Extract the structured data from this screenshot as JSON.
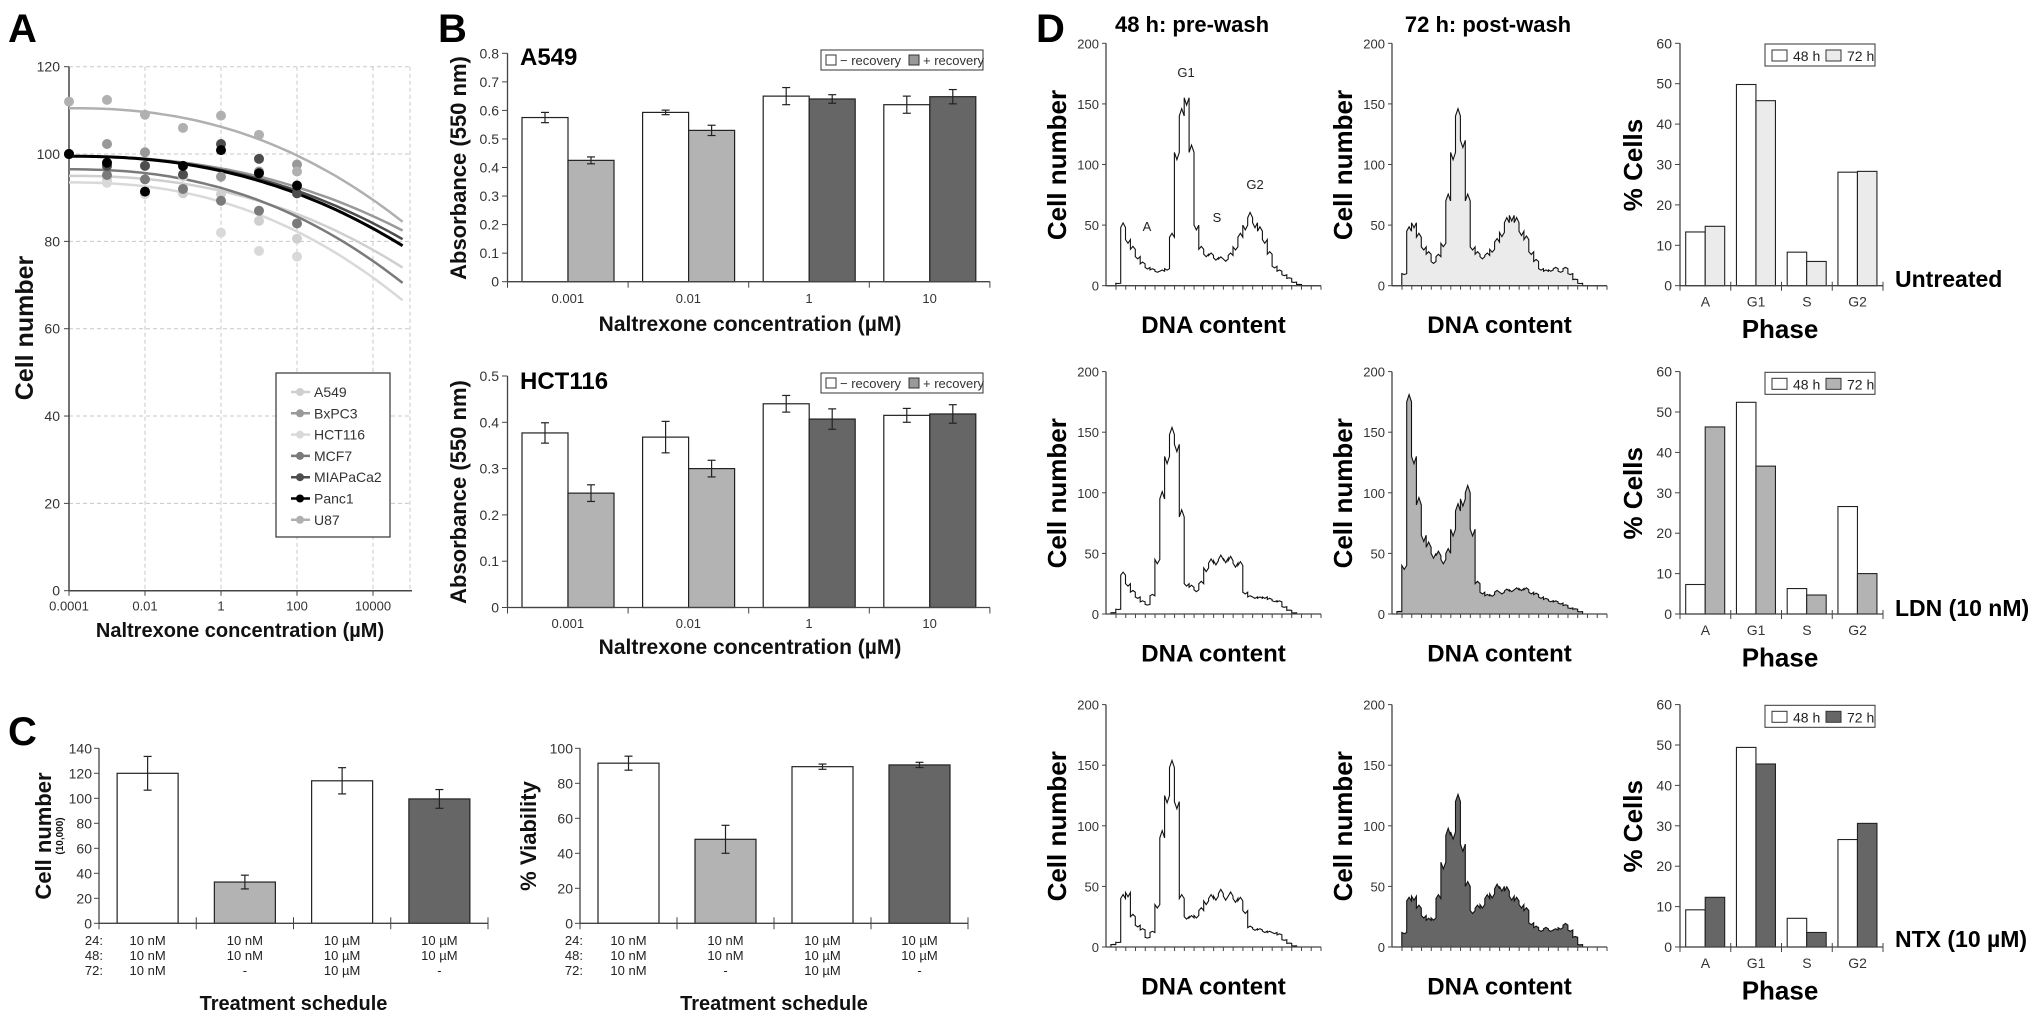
{
  "figure": {
    "panel_labels": [
      "A",
      "B",
      "C",
      "D"
    ],
    "d_column_titles": [
      "48 h: pre-wash",
      "72 h: post-wash"
    ],
    "d_row_labels": [
      "Untreated",
      "LDN (10 nM)",
      "NTX (10 µM)"
    ]
  },
  "chart_data": [
    {
      "panel": "A",
      "type": "scatter",
      "xscale": "log",
      "xlabel": "Naltrexone concentration (µM)",
      "ylabel": "Cell number",
      "ylim": [
        0,
        120
      ],
      "yticks": [
        0,
        20,
        40,
        60,
        80,
        100,
        120
      ],
      "xticks": [
        "0.0001",
        "0.01",
        "1",
        "100",
        "10000"
      ],
      "grid": true,
      "legend": "bottom-right",
      "x": [
        0.0001,
        0.001,
        0.01,
        0.1,
        1,
        10,
        100
      ],
      "fit_x_range": [
        0.0001,
        60000
      ],
      "series": [
        {
          "name": "A549",
          "color": "#cfcfcf",
          "values": [
            100,
            94,
            91,
            91,
            90.8,
            84.7,
            80.6
          ],
          "fit": [
            95,
            74
          ]
        },
        {
          "name": "BxPC3",
          "color": "#999999",
          "values": [
            100,
            102.3,
            100.4,
            95,
            94.8,
            96,
            97.6
          ],
          "fit": [
            99.5,
            82.5
          ]
        },
        {
          "name": "HCT116",
          "color": "#d9d9d9",
          "values": [
            100,
            93.4,
            90.8,
            94.8,
            82,
            77.8,
            76.5
          ],
          "fit": [
            93.5,
            66.5
          ]
        },
        {
          "name": "MCF7",
          "color": "#7a7a7a",
          "values": [
            100,
            95.2,
            94.2,
            92,
            89.3,
            87,
            84.1
          ],
          "fit": [
            96.5,
            70.5
          ]
        },
        {
          "name": "MIAPaCa2",
          "color": "#4d4d4d",
          "values": [
            100,
            97.3,
            97.3,
            95.3,
            102.3,
            98.9,
            91
          ],
          "fit": [
            99.5,
            80.5
          ]
        },
        {
          "name": "Panc1",
          "color": "#000000",
          "values": [
            100,
            98,
            91.4,
            97.3,
            100.9,
            95.6,
            92.8
          ],
          "fit": [
            99.5,
            79
          ]
        },
        {
          "name": "U87",
          "color": "#b0b0b0",
          "values": [
            112,
            112.4,
            109,
            106,
            108.8,
            104.4,
            96
          ],
          "fit": [
            110.5,
            84.5
          ]
        }
      ]
    },
    {
      "panel": "B",
      "type": "bar",
      "title": "A549",
      "xlabel": "Naltrexone concentration (µM)",
      "ylabel": "Absorbance (550 nm)",
      "ylim": [
        0,
        0.8
      ],
      "yticks": [
        "0",
        "0.1",
        "0.2",
        "0.3",
        "0.4",
        "0.5",
        "0.6",
        "0.7",
        "0.8"
      ],
      "categories": [
        "0.001",
        "0.01",
        "1",
        "10"
      ],
      "legend": "top-right",
      "series": [
        {
          "name": "− recovery",
          "legend_color": "#ffffff",
          "values": [
            0.575,
            0.593,
            0.65,
            0.62
          ],
          "errors": [
            0.018,
            0.008,
            0.03,
            0.03
          ],
          "colors": [
            "#ffffff",
            "#ffffff",
            "#ffffff",
            "#ffffff"
          ]
        },
        {
          "name": "+ recovery",
          "legend_color": "#999999",
          "values": [
            0.425,
            0.53,
            0.64,
            0.648
          ],
          "errors": [
            0.012,
            0.018,
            0.015,
            0.025
          ],
          "colors": [
            "#b3b3b3",
            "#b3b3b3",
            "#666666",
            "#666666"
          ]
        }
      ]
    },
    {
      "panel": "B",
      "type": "bar",
      "title": "HCT116",
      "xlabel": "Naltrexone concentration (µM)",
      "ylabel": "Absorbance (550 nm)",
      "ylim": [
        0,
        0.5
      ],
      "yticks": [
        "0",
        "0.1",
        "0.2",
        "0.3",
        "0.4",
        "0.5"
      ],
      "categories": [
        "0.001",
        "0.01",
        "1",
        "10"
      ],
      "legend": "top-right",
      "series": [
        {
          "name": "− recovery",
          "legend_color": "#ffffff",
          "values": [
            0.377,
            0.368,
            0.44,
            0.415
          ],
          "errors": [
            0.022,
            0.034,
            0.018,
            0.015
          ],
          "colors": [
            "#ffffff",
            "#ffffff",
            "#ffffff",
            "#ffffff"
          ]
        },
        {
          "name": "+ recovery",
          "legend_color": "#999999",
          "values": [
            0.247,
            0.3,
            0.407,
            0.418
          ],
          "errors": [
            0.018,
            0.018,
            0.022,
            0.02
          ],
          "colors": [
            "#b3b3b3",
            "#b3b3b3",
            "#666666",
            "#666666"
          ]
        }
      ]
    },
    {
      "panel": "C",
      "type": "bar",
      "ylabel": "Cell number",
      "ylabel_sub": "(10,000)",
      "xlabel": "Treatment schedule",
      "ylim": [
        0,
        140
      ],
      "yticks": [
        0,
        20,
        40,
        60,
        80,
        100,
        120,
        140
      ],
      "schedule_labels": [
        "24:",
        "48:",
        "72:"
      ],
      "schedule": [
        [
          "10 nM",
          "10 nM",
          "10 nM"
        ],
        [
          "10 nM",
          "10 nM",
          "-"
        ],
        [
          "10 µM",
          "10 µM",
          "10 µM"
        ],
        [
          "10 µM",
          "10 µM",
          "-"
        ]
      ],
      "values": [
        120,
        33,
        114,
        99.5
      ],
      "errors": [
        13.5,
        5.5,
        10.5,
        7.5
      ],
      "colors": [
        "#ffffff",
        "#b3b3b3",
        "#ffffff",
        "#666666"
      ]
    },
    {
      "panel": "C",
      "type": "bar",
      "ylabel": "% Viability",
      "xlabel": "Treatment schedule",
      "ylim": [
        0,
        100
      ],
      "yticks": [
        0,
        20,
        40,
        60,
        80,
        100
      ],
      "schedule_labels": [
        "24:",
        "48:",
        "72:"
      ],
      "schedule": [
        [
          "10 nM",
          "10 nM",
          "10 nM"
        ],
        [
          "10 nM",
          "10 nM",
          "-"
        ],
        [
          "10 µM",
          "10 µM",
          "10 µM"
        ],
        [
          "10 µM",
          "10 µM",
          "-"
        ]
      ],
      "values": [
        91.5,
        48,
        89.5,
        90.5
      ],
      "errors": [
        4,
        8,
        1.5,
        1.5
      ],
      "colors": [
        "#ffffff",
        "#b3b3b3",
        "#ffffff",
        "#666666"
      ]
    },
    {
      "panel": "D",
      "type": "area",
      "row": "Untreated",
      "time": "48 h",
      "xlabel": "DNA content",
      "ylabel": "Cell number",
      "ylim": [
        0,
        200
      ],
      "yticks": [
        0,
        50,
        100,
        150,
        200
      ],
      "fill": "none",
      "annotations": [
        "A",
        "G1",
        "S",
        "G2"
      ],
      "values": [
        0,
        0,
        2,
        48,
        38,
        30,
        24,
        18,
        15,
        13,
        12,
        12,
        14,
        40,
        110,
        140,
        155,
        110,
        50,
        30,
        26,
        25,
        23,
        22,
        22,
        25,
        32,
        40,
        50,
        56,
        52,
        45,
        38,
        26,
        16,
        12,
        9,
        6,
        3,
        1,
        0,
        0,
        0,
        0
      ]
    },
    {
      "panel": "D",
      "type": "area",
      "row": "Untreated",
      "time": "72 h",
      "xlabel": "DNA content",
      "ylabel": "Cell number",
      "ylim": [
        0,
        200
      ],
      "yticks": [
        0,
        50,
        100,
        150,
        200
      ],
      "fill": "#ebebeb",
      "values": [
        0,
        0,
        10,
        45,
        52,
        40,
        32,
        26,
        20,
        24,
        35,
        70,
        110,
        140,
        120,
        70,
        32,
        26,
        24,
        25,
        30,
        36,
        44,
        52,
        58,
        52,
        45,
        38,
        28,
        20,
        14,
        12,
        13,
        14,
        12,
        14,
        10,
        5,
        2,
        0,
        0,
        0,
        0,
        0
      ]
    },
    {
      "panel": "D",
      "type": "area",
      "row": "LDN (10 nM)",
      "time": "48 h",
      "xlabel": "DNA content",
      "ylabel": "Cell number",
      "ylim": [
        0,
        200
      ],
      "yticks": [
        0,
        50,
        100,
        150,
        200
      ],
      "fill": "none",
      "values": [
        0,
        1,
        4,
        32,
        25,
        18,
        14,
        10,
        8,
        15,
        45,
        95,
        130,
        148,
        140,
        80,
        25,
        22,
        20,
        25,
        38,
        42,
        44,
        45,
        46,
        44,
        42,
        40,
        18,
        14,
        14,
        13,
        14,
        12,
        11,
        10,
        6,
        3,
        1,
        0,
        0,
        0,
        0,
        0
      ]
    },
    {
      "panel": "D",
      "type": "area",
      "row": "LDN (10 nM)",
      "time": "72 h",
      "xlabel": "DNA content",
      "ylabel": "Cell number",
      "ylim": [
        0,
        200
      ],
      "yticks": [
        0,
        50,
        100,
        150,
        200
      ],
      "fill": "#b3b3b3",
      "values": [
        0,
        2,
        40,
        175,
        130,
        90,
        65,
        55,
        50,
        48,
        45,
        50,
        70,
        85,
        95,
        100,
        70,
        25,
        18,
        15,
        16,
        18,
        18,
        19,
        20,
        20,
        21,
        20,
        18,
        16,
        14,
        12,
        11,
        10,
        9,
        7,
        5,
        4,
        2,
        0,
        0,
        0,
        0,
        0
      ]
    },
    {
      "panel": "D",
      "type": "area",
      "row": "NTX (10 µM)",
      "time": "48 h",
      "xlabel": "DNA content",
      "ylabel": "Cell number",
      "ylim": [
        0,
        200
      ],
      "yticks": [
        0,
        50,
        100,
        150,
        200
      ],
      "fill": "none",
      "values": [
        0,
        2,
        4,
        40,
        45,
        25,
        18,
        14,
        8,
        12,
        35,
        90,
        125,
        148,
        120,
        40,
        25,
        24,
        26,
        30,
        38,
        40,
        42,
        44,
        42,
        42,
        40,
        38,
        30,
        16,
        15,
        14,
        13,
        12,
        12,
        10,
        6,
        3,
        1,
        0,
        0,
        0,
        0,
        0
      ]
    },
    {
      "panel": "D",
      "type": "area",
      "row": "NTX (10 µM)",
      "time": "72 h",
      "xlabel": "DNA content",
      "ylabel": "Cell number",
      "ylim": [
        0,
        200
      ],
      "yticks": [
        0,
        50,
        100,
        150,
        200
      ],
      "fill": "#666666",
      "values": [
        0,
        0,
        12,
        38,
        42,
        32,
        26,
        22,
        24,
        40,
        70,
        92,
        95,
        120,
        85,
        50,
        30,
        32,
        35,
        40,
        44,
        48,
        50,
        46,
        42,
        38,
        35,
        30,
        20,
        16,
        14,
        15,
        14,
        14,
        16,
        18,
        14,
        8,
        2,
        0,
        0,
        0,
        0,
        0
      ]
    },
    {
      "panel": "D",
      "type": "bar",
      "row": "Untreated",
      "xlabel": "Phase",
      "ylabel": "% Cells",
      "ylim": [
        0,
        60
      ],
      "yticks": [
        0,
        10,
        20,
        30,
        40,
        50,
        60
      ],
      "categories": [
        "A",
        "G1",
        "S",
        "G2"
      ],
      "legend": "top-right",
      "series": [
        {
          "name": "48 h",
          "color": "#ffffff",
          "values": [
            13.3,
            49.8,
            8.3,
            28.1
          ]
        },
        {
          "name": "72 h",
          "color": "#ebebeb",
          "values": [
            14.7,
            45.8,
            6.0,
            28.3
          ]
        }
      ]
    },
    {
      "panel": "D",
      "type": "bar",
      "row": "LDN (10 nM)",
      "xlabel": "Phase",
      "ylabel": "% Cells",
      "ylim": [
        0,
        60
      ],
      "yticks": [
        0,
        10,
        20,
        30,
        40,
        50,
        60
      ],
      "categories": [
        "A",
        "G1",
        "S",
        "G2"
      ],
      "legend": "top-right",
      "series": [
        {
          "name": "48 h",
          "color": "#ffffff",
          "values": [
            7.3,
            52.4,
            6.3,
            26.6
          ]
        },
        {
          "name": "72 h",
          "color": "#b3b3b3",
          "values": [
            46.3,
            36.6,
            4.7,
            10.0
          ]
        }
      ]
    },
    {
      "panel": "D",
      "type": "bar",
      "row": "NTX (10 µM)",
      "xlabel": "Phase",
      "ylabel": "% Cells",
      "ylim": [
        0,
        60
      ],
      "yticks": [
        0,
        10,
        20,
        30,
        40,
        50,
        60
      ],
      "categories": [
        "A",
        "G1",
        "S",
        "G2"
      ],
      "legend": "top-right",
      "series": [
        {
          "name": "48 h",
          "color": "#ffffff",
          "values": [
            9.2,
            49.4,
            7.1,
            26.6
          ]
        },
        {
          "name": "72 h",
          "color": "#666666",
          "values": [
            12.3,
            45.3,
            3.6,
            30.6
          ]
        }
      ]
    }
  ]
}
